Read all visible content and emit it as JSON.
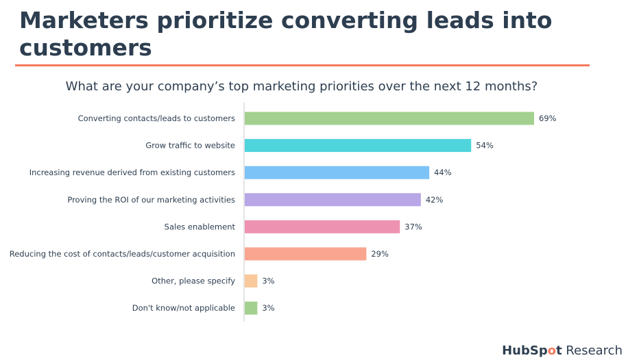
{
  "header": {
    "title": "Marketers prioritize converting leads into customers"
  },
  "chart_data": {
    "type": "bar",
    "orientation": "horizontal",
    "title": "What are your company’s top marketing priorities over the next 12 months?",
    "categories": [
      "Converting contacts/leads to customers",
      "Grow traffic to website",
      "Increasing revenue derived from existing customers",
      "Proving the ROI of our marketing activities",
      "Sales enablement",
      "Reducing the cost of contacts/leads/customer acquisition",
      "Other, please specify",
      "Don't know/not applicable"
    ],
    "values": [
      69,
      54,
      44,
      42,
      37,
      29,
      3,
      3
    ],
    "value_labels": [
      "69%",
      "54%",
      "44%",
      "42%",
      "37%",
      "29%",
      "3%",
      "3%"
    ],
    "colors": [
      "#a3d08f",
      "#4fd4dc",
      "#7cc3f7",
      "#b8a6e6",
      "#ee92b2",
      "#f9a58f",
      "#f9c89b",
      "#a3d08f"
    ],
    "xlabel": "",
    "ylabel": "",
    "xlim": [
      0,
      69
    ]
  },
  "footer": {
    "logo_brand_start": "HubSp",
    "logo_brand_accent": "o",
    "logo_brand_end": "t",
    "logo_suffix": " Research"
  }
}
